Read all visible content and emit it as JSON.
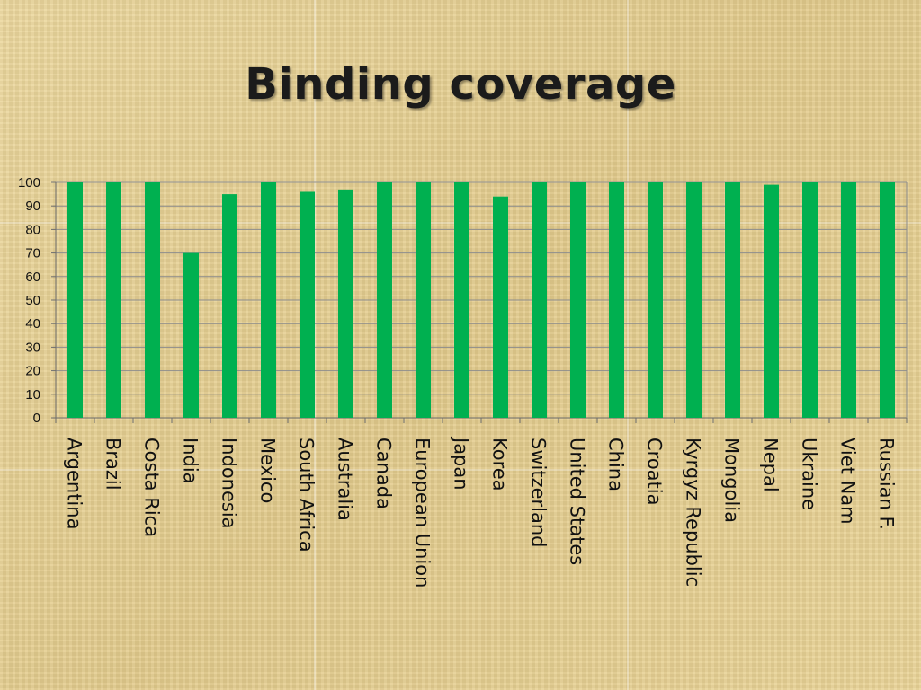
{
  "title": "Binding coverage",
  "chart_data": {
    "type": "bar",
    "title": "Binding coverage",
    "categories": [
      "Argentina",
      "Brazil",
      "Costa Rica",
      "India",
      "Indonesia",
      "Mexico",
      "South Africa",
      "Australia",
      "Canada",
      "European Union",
      "Japan",
      "Korea",
      "Switzerland",
      "United States",
      "China",
      "Croatia",
      "Kyrgyz Republic",
      "Mongolia",
      "Nepal",
      "Ukraine",
      "Viet Nam",
      "Russian F."
    ],
    "values": [
      100,
      100,
      100,
      70,
      95,
      100,
      96,
      97,
      100,
      100,
      100,
      94,
      100,
      100,
      100,
      100,
      100,
      100,
      99,
      100,
      100,
      100
    ],
    "ylim": [
      0,
      100
    ],
    "yticks": [
      0,
      10,
      20,
      30,
      40,
      50,
      60,
      70,
      80,
      90,
      100
    ],
    "grid": true,
    "colors": {
      "bar": "#00b050",
      "grid": "#8c8c8c"
    }
  }
}
